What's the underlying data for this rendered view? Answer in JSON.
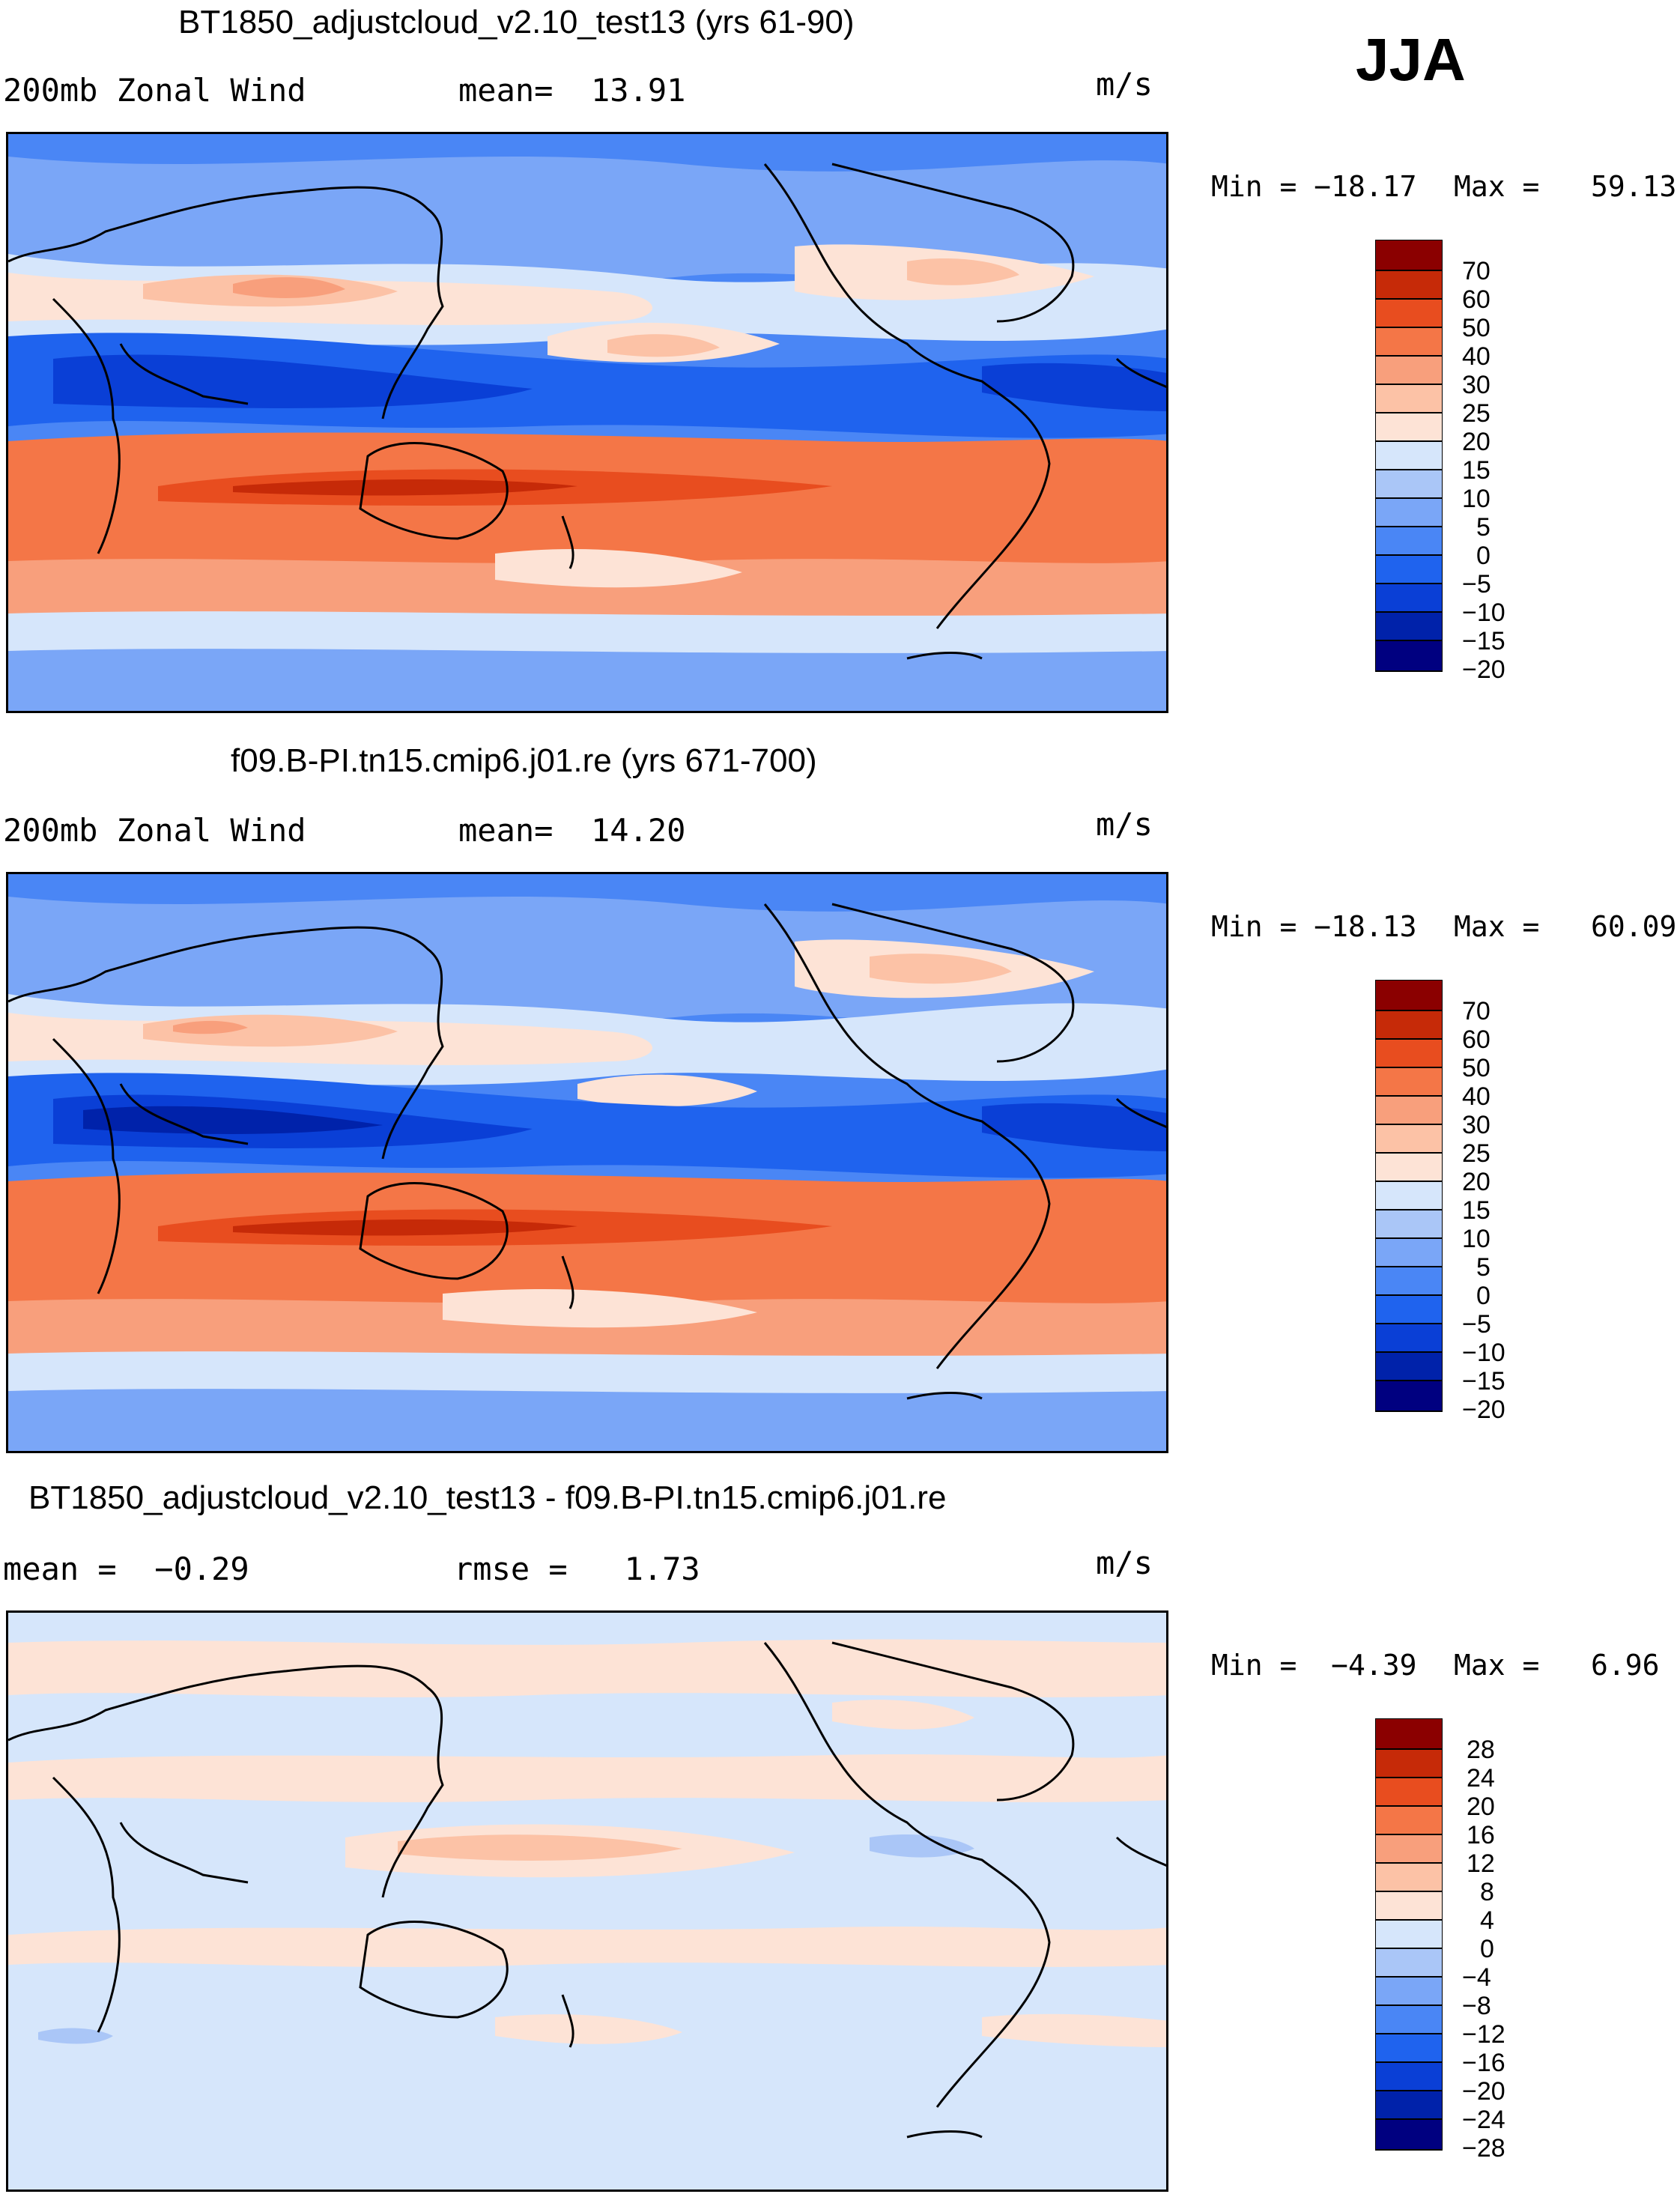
{
  "season": "JJA",
  "units": "m/s",
  "colors": {
    "sequential_levels": [
      "#000080",
      "#0022aa",
      "#0a3fd6",
      "#1f63ee",
      "#4a86f5",
      "#7aa6f7",
      "#aac6f7",
      "#d6e6fb",
      "#fde3d6",
      "#fcc2a6",
      "#f89f7c",
      "#f47647",
      "#e84d1f",
      "#c62a08",
      "#8b0000"
    ],
    "coastline": "#000000"
  },
  "panels": [
    {
      "id": "top",
      "title": "BT1850_adjustcloud_v2.10_test13 (yrs 61-90)",
      "left_label": "200mb Zonal Wind",
      "middle_label": "mean=  13.91",
      "units": "m/s",
      "min_label": "Min = −18.17",
      "max_label": "Max =   59.13",
      "colorbar_ticks": [
        "70",
        "60",
        "50",
        "40",
        "30",
        "25",
        "20",
        "15",
        "10",
        "5",
        "0",
        "−5",
        "−10",
        "−15",
        "−20"
      ],
      "map_description": "200mb zonal wind field with westerly jet in southern hemisphere and easterlies across the tropics"
    },
    {
      "id": "middle",
      "title": "f09.B-PI.tn15.cmip6.j01.re (yrs 671-700)",
      "left_label": "200mb Zonal Wind",
      "middle_label": "mean=  14.20",
      "units": "m/s",
      "min_label": "Min = −18.13",
      "max_label": "Max =   60.09",
      "colorbar_ticks": [
        "70",
        "60",
        "50",
        "40",
        "30",
        "25",
        "20",
        "15",
        "10",
        "5",
        "0",
        "−5",
        "−10",
        "−15",
        "−20"
      ],
      "map_description": "200mb zonal wind field for the control run"
    },
    {
      "id": "bottom",
      "title": "BT1850_adjustcloud_v2.10_test13 - f09.B-PI.tn15.cmip6.j01.re",
      "left_label": "mean =  −0.29",
      "middle_label": "rmse =   1.73",
      "units": "m/s",
      "min_label": "Min =  −4.39",
      "max_label": "Max =   6.96",
      "colorbar_ticks": [
        "28",
        "24",
        "20",
        "16",
        "12",
        "8",
        "4",
        "0",
        "−4",
        "−8",
        "−12",
        "−16",
        "−20",
        "−24",
        "−28"
      ],
      "map_description": "Difference field (test minus control) of 200mb zonal wind"
    }
  ]
}
